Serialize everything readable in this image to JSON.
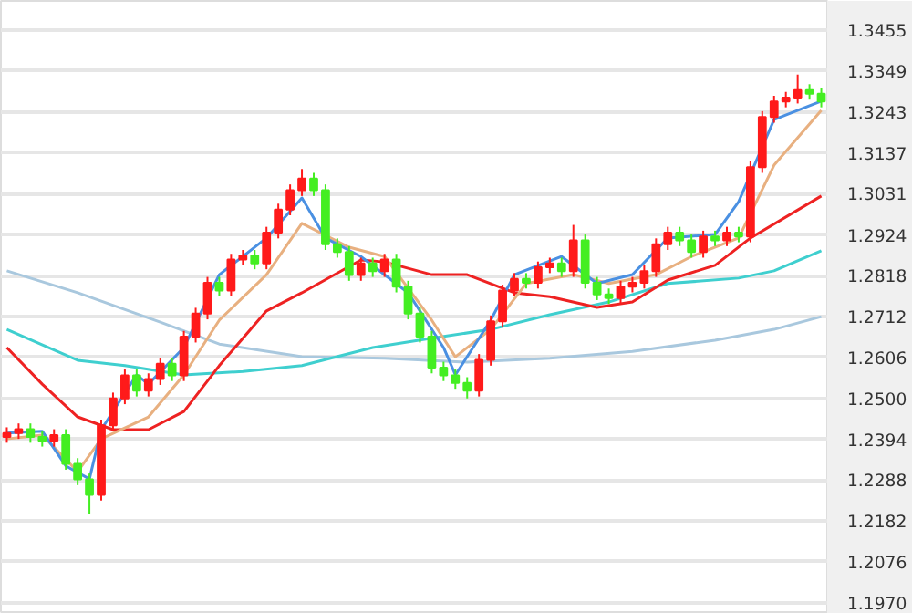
{
  "chart_data": {
    "type": "candlestick",
    "categories": [
      null,
      null,
      null,
      null,
      null,
      null,
      null,
      null,
      null,
      null,
      null,
      null,
      null,
      null,
      null,
      null,
      null,
      null,
      null,
      null,
      null,
      null,
      null,
      null,
      null,
      null,
      null,
      null,
      null,
      null,
      null,
      null,
      null,
      null,
      null,
      null,
      null,
      null,
      null,
      null,
      null,
      null,
      null,
      null,
      null,
      null,
      null,
      null,
      null,
      null,
      null,
      null,
      null,
      null,
      null,
      null,
      null,
      null,
      null,
      null,
      null,
      null,
      null,
      null,
      null,
      null,
      null,
      null,
      null,
      null
    ],
    "ohlc": [
      [
        1.24,
        1.2425,
        1.2385,
        1.241
      ],
      [
        1.241,
        1.2435,
        1.2395,
        1.242
      ],
      [
        1.242,
        1.2435,
        1.2385,
        1.24
      ],
      [
        1.24,
        1.2415,
        1.2375,
        1.239
      ],
      [
        1.239,
        1.242,
        1.2375,
        1.2405
      ],
      [
        1.2405,
        1.242,
        1.2315,
        1.233
      ],
      [
        1.233,
        1.2345,
        1.2275,
        1.229
      ],
      [
        1.229,
        1.2305,
        1.22,
        1.225
      ],
      [
        1.225,
        1.2445,
        1.2235,
        1.243
      ],
      [
        1.243,
        1.2515,
        1.2415,
        1.25
      ],
      [
        1.25,
        1.2575,
        1.2485,
        1.256
      ],
      [
        1.256,
        1.2575,
        1.2505,
        1.252
      ],
      [
        1.252,
        1.2565,
        1.2505,
        1.255
      ],
      [
        1.255,
        1.2605,
        1.2535,
        1.259
      ],
      [
        1.259,
        1.2605,
        1.2545,
        1.256
      ],
      [
        1.256,
        1.2675,
        1.2545,
        1.266
      ],
      [
        1.266,
        1.2735,
        1.2645,
        1.272
      ],
      [
        1.272,
        1.2815,
        1.2705,
        1.28
      ],
      [
        1.28,
        1.2815,
        1.2765,
        1.278
      ],
      [
        1.278,
        1.2875,
        1.2765,
        1.286
      ],
      [
        1.286,
        1.2885,
        1.2845,
        1.287
      ],
      [
        1.287,
        1.2885,
        1.2835,
        1.285
      ],
      [
        1.285,
        1.2945,
        1.2835,
        1.293
      ],
      [
        1.293,
        1.3005,
        1.2915,
        1.299
      ],
      [
        1.299,
        1.3055,
        1.2975,
        1.304
      ],
      [
        1.304,
        1.3095,
        1.3025,
        1.307
      ],
      [
        1.307,
        1.3085,
        1.3025,
        1.304
      ],
      [
        1.304,
        1.3055,
        1.2885,
        1.29
      ],
      [
        1.29,
        1.2915,
        1.2865,
        1.288
      ],
      [
        1.288,
        1.2895,
        1.2805,
        1.282
      ],
      [
        1.282,
        1.2865,
        1.2805,
        1.285
      ],
      [
        1.285,
        1.2865,
        1.2815,
        1.283
      ],
      [
        1.283,
        1.2875,
        1.2815,
        1.286
      ],
      [
        1.286,
        1.2875,
        1.2775,
        1.279
      ],
      [
        1.279,
        1.2805,
        1.2705,
        1.272
      ],
      [
        1.272,
        1.2735,
        1.2645,
        1.266
      ],
      [
        1.266,
        1.2675,
        1.2565,
        1.258
      ],
      [
        1.258,
        1.2595,
        1.2545,
        1.256
      ],
      [
        1.256,
        1.2575,
        1.2525,
        1.254
      ],
      [
        1.254,
        1.2555,
        1.25,
        1.252
      ],
      [
        1.252,
        1.2615,
        1.2505,
        1.26
      ],
      [
        1.26,
        1.2715,
        1.2585,
        1.27
      ],
      [
        1.27,
        1.2795,
        1.2685,
        1.278
      ],
      [
        1.278,
        1.2825,
        1.2765,
        1.281
      ],
      [
        1.281,
        1.2825,
        1.2785,
        1.28
      ],
      [
        1.28,
        1.2855,
        1.2785,
        1.284
      ],
      [
        1.284,
        1.2865,
        1.2825,
        1.285
      ],
      [
        1.285,
        1.2865,
        1.2815,
        1.283
      ],
      [
        1.283,
        1.295,
        1.2815,
        1.291
      ],
      [
        1.291,
        1.2925,
        1.2785,
        1.28
      ],
      [
        1.28,
        1.2815,
        1.2755,
        1.277
      ],
      [
        1.277,
        1.2785,
        1.2745,
        1.276
      ],
      [
        1.276,
        1.2805,
        1.2745,
        1.279
      ],
      [
        1.279,
        1.2815,
        1.2775,
        1.28
      ],
      [
        1.28,
        1.2845,
        1.2785,
        1.283
      ],
      [
        1.283,
        1.2915,
        1.2815,
        1.29
      ],
      [
        1.29,
        1.2945,
        1.2885,
        1.293
      ],
      [
        1.293,
        1.2945,
        1.2895,
        1.291
      ],
      [
        1.291,
        1.2925,
        1.2865,
        1.288
      ],
      [
        1.288,
        1.2935,
        1.2865,
        1.292
      ],
      [
        1.292,
        1.2935,
        1.2895,
        1.291
      ],
      [
        1.291,
        1.2945,
        1.2895,
        1.293
      ],
      [
        1.293,
        1.2945,
        1.2905,
        1.292
      ],
      [
        1.292,
        1.3115,
        1.2905,
        1.31
      ],
      [
        1.31,
        1.3245,
        1.3085,
        1.323
      ],
      [
        1.323,
        1.3285,
        1.3215,
        1.327
      ],
      [
        1.327,
        1.3295,
        1.3255,
        1.328
      ],
      [
        1.328,
        1.334,
        1.3265,
        1.33
      ],
      [
        1.33,
        1.3315,
        1.3275,
        1.329
      ],
      [
        1.329,
        1.3305,
        1.3255,
        1.327
      ]
    ],
    "colors": [
      "#ff1a1a",
      "#ff1a1a",
      "#44ee22",
      "#44ee22",
      "#ff1a1a",
      "#44ee22",
      "#44ee22",
      "#44ee22",
      "#ff1a1a",
      "#ff1a1a",
      "#ff1a1a",
      "#44ee22",
      "#ff1a1a",
      "#ff1a1a",
      "#44ee22",
      "#ff1a1a",
      "#ff1a1a",
      "#ff1a1a",
      "#44ee22",
      "#ff1a1a",
      "#ff1a1a",
      "#44ee22",
      "#ff1a1a",
      "#ff1a1a",
      "#ff1a1a",
      "#ff1a1a",
      "#44ee22",
      "#44ee22",
      "#44ee22",
      "#44ee22",
      "#ff1a1a",
      "#44ee22",
      "#ff1a1a",
      "#44ee22",
      "#44ee22",
      "#44ee22",
      "#44ee22",
      "#44ee22",
      "#44ee22",
      "#44ee22",
      "#ff1a1a",
      "#ff1a1a",
      "#ff1a1a",
      "#ff1a1a",
      "#44ee22",
      "#ff1a1a",
      "#ff1a1a",
      "#44ee22",
      "#ff1a1a",
      "#44ee22",
      "#44ee22",
      "#44ee22",
      "#ff1a1a",
      "#ff1a1a",
      "#ff1a1a",
      "#ff1a1a",
      "#ff1a1a",
      "#44ee22",
      "#44ee22",
      "#ff1a1a",
      "#44ee22",
      "#ff1a1a",
      "#44ee22",
      "#ff1a1a",
      "#ff1a1a",
      "#ff1a1a",
      "#ff1a1a",
      "#ff1a1a",
      "#44ee22",
      "#44ee22"
    ],
    "series": [
      {
        "type": "line",
        "color": "#a9c8de",
        "values": [
          1.2831,
          null,
          null,
          null,
          null,
          null,
          1.2774,
          null,
          null,
          null,
          null,
          null,
          null,
          1.2698,
          null,
          null,
          null,
          null,
          1.2641,
          null,
          null,
          null,
          null,
          null,
          null,
          1.2608,
          null,
          null,
          null,
          null,
          null,
          null,
          1.2604,
          null,
          null,
          null,
          null,
          null,
          null,
          1.2594,
          null,
          null,
          null,
          null,
          null,
          null,
          1.2604,
          null,
          null,
          null,
          null,
          null,
          null,
          1.2622,
          null,
          null,
          null,
          null,
          null,
          null,
          1.2651,
          null,
          null,
          null,
          null,
          1.2679,
          null,
          null,
          null,
          1.2712
        ]
      },
      {
        "type": "line",
        "color": "#3fcfcf",
        "values": [
          1.2679,
          null,
          null,
          null,
          null,
          null,
          1.2599,
          null,
          null,
          null,
          1.2585,
          null,
          null,
          null,
          null,
          1.2561,
          null,
          null,
          null,
          null,
          1.257,
          null,
          null,
          null,
          null,
          1.2585,
          null,
          null,
          null,
          null,
          null,
          1.2632,
          null,
          null,
          null,
          null,
          1.2656,
          null,
          null,
          null,
          null,
          1.2679,
          null,
          null,
          null,
          null,
          1.2717,
          null,
          null,
          null,
          null,
          1.275,
          null,
          null,
          null,
          null,
          1.2798,
          null,
          null,
          null,
          null,
          null,
          1.2812,
          null,
          null,
          1.2831,
          null,
          null,
          null,
          1.2883
        ]
      },
      {
        "type": "line",
        "color": "#ee2222",
        "values": [
          1.2632,
          null,
          null,
          1.2537,
          null,
          null,
          1.2452,
          null,
          null,
          1.2419,
          null,
          null,
          1.2419,
          null,
          null,
          1.2466,
          null,
          null,
          1.2585,
          null,
          null,
          null,
          1.2727,
          null,
          null,
          1.2774,
          null,
          null,
          null,
          null,
          1.2859,
          null,
          1.2854,
          null,
          null,
          null,
          1.2821,
          null,
          null,
          1.2821,
          null,
          null,
          null,
          1.2774,
          null,
          null,
          1.2764,
          null,
          null,
          null,
          1.2736,
          null,
          null,
          1.275,
          null,
          null,
          1.2807,
          null,
          null,
          null,
          1.2845,
          null,
          null,
          1.2916,
          null,
          null,
          null,
          null,
          null,
          1.3025
        ]
      },
      {
        "type": "line",
        "color": "#e8b080",
        "values": [
          1.2395,
          null,
          null,
          1.2405,
          null,
          null,
          1.231,
          null,
          1.2395,
          null,
          null,
          null,
          1.2452,
          null,
          null,
          1.2561,
          null,
          null,
          1.2703,
          null,
          null,
          null,
          1.2821,
          null,
          null,
          1.2954,
          null,
          null,
          null,
          1.2892,
          null,
          null,
          1.2868,
          null,
          null,
          null,
          1.2703,
          null,
          1.2608,
          null,
          null,
          1.2679,
          null,
          null,
          1.2798,
          null,
          null,
          null,
          1.2821,
          null,
          null,
          1.2798,
          null,
          null,
          null,
          1.2821,
          null,
          null,
          1.2868,
          null,
          null,
          null,
          1.2916,
          null,
          null,
          1.3105,
          null,
          null,
          null,
          1.3247
        ]
      },
      {
        "type": "line",
        "color": "#4a90e2",
        "values": [
          1.241,
          null,
          null,
          1.2415,
          null,
          1.2325,
          null,
          1.2291,
          1.2419,
          null,
          null,
          1.2561,
          1.2537,
          null,
          null,
          1.2632,
          null,
          null,
          1.2821,
          null,
          null,
          null,
          1.2916,
          null,
          null,
          1.302,
          null,
          1.2916,
          null,
          null,
          1.2868,
          null,
          null,
          null,
          1.2774,
          null,
          null,
          1.2632,
          1.2561,
          null,
          null,
          1.2703,
          null,
          1.2821,
          null,
          null,
          null,
          1.2868,
          null,
          null,
          1.2798,
          null,
          null,
          1.2821,
          null,
          null,
          1.2916,
          null,
          null,
          null,
          1.2925,
          null,
          1.301,
          null,
          null,
          1.3223,
          null,
          null,
          null,
          1.3271
        ]
      }
    ],
    "ylim": [
      1.1941,
      1.3531
    ],
    "yticks": [
      1.3455,
      1.3349,
      1.3243,
      1.3137,
      1.3031,
      1.2924,
      1.2818,
      1.2712,
      1.2606,
      {
        "value": 1.25,
        "label": "1.2500"
      },
      1.2394,
      1.2288,
      1.2182,
      1.2076,
      {
        "value": 1.197,
        "label": "1.1970"
      }
    ],
    "grid": "y"
  }
}
